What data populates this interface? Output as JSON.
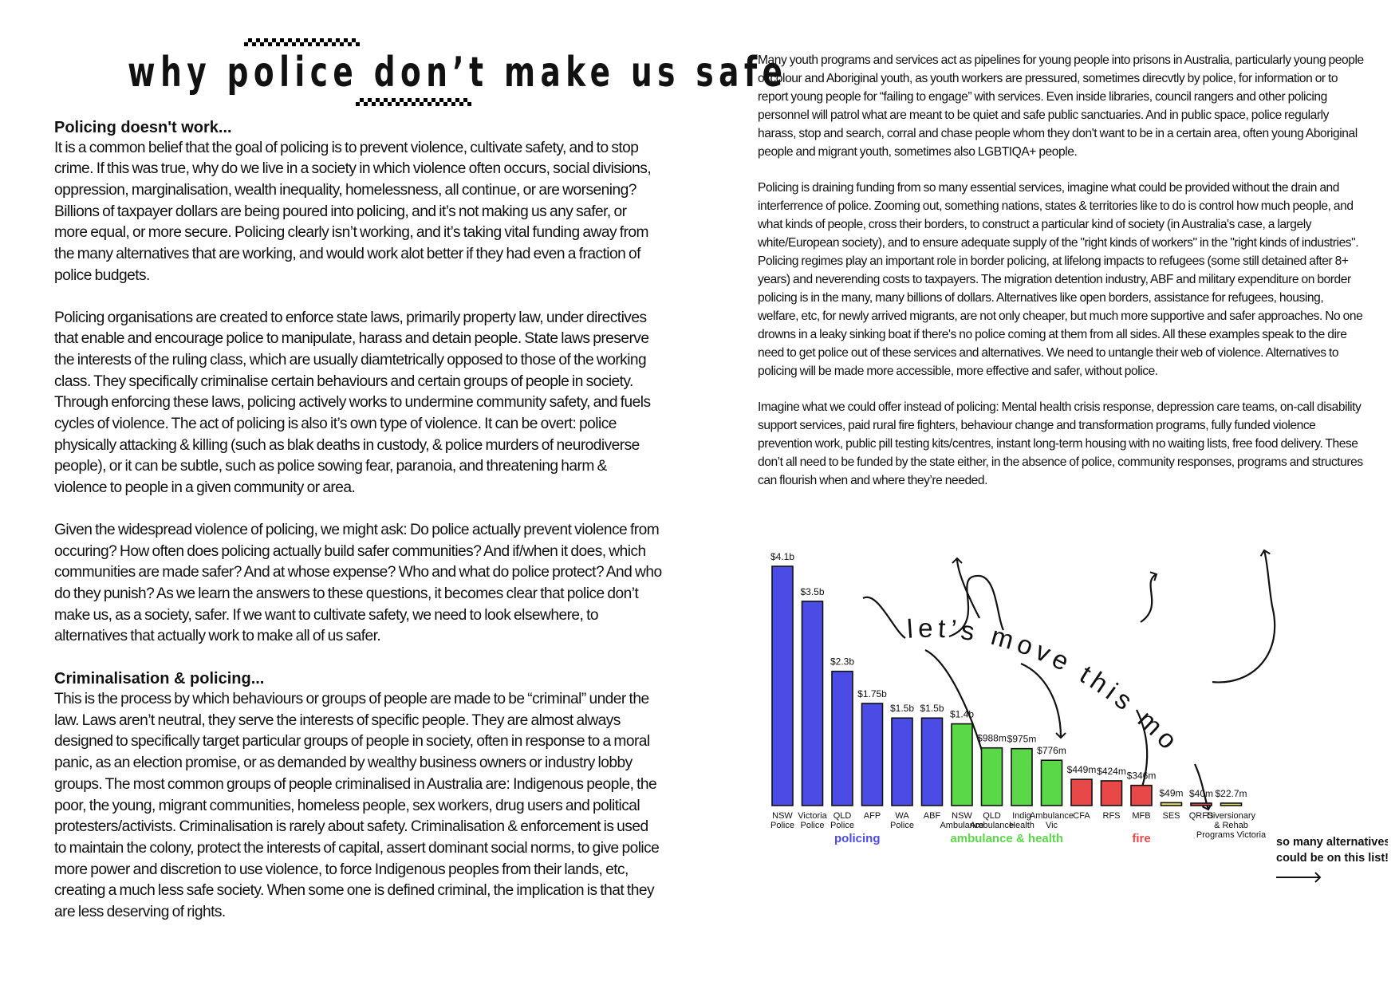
{
  "left": {
    "title": "why police don’t make us safe",
    "sections": [
      {
        "heading": "Policing doesn't work...",
        "paragraphs": [
          "It is a common belief that the goal of policing is to prevent violence, cultivate safety, and to stop crime. If this was true, why do we live in a society in which violence often occurs, social divisions, oppression, marginalisation, wealth inequality, homelessness, all continue, or are worsening? Billions of taxpayer dollars are being poured into policing, and it’s not making us any safer, or more equal, or more secure.  Policing clearly isn’t working, and it’s taking vital funding away from the many alternatives that are working, and would work alot better if they had even a fraction of police budgets."
        ]
      },
      {
        "heading": "",
        "paragraphs": [
          "Policing organisations are created to enforce state laws, primarily property law, under directives that enable and encourage police to manipulate, harass and detain people. State laws preserve the interests of the ruling class, which are usually diamtetrically opposed to those of the working class. They specifically criminalise certain behaviours and certain groups of people in society. Through enforcing these laws, policing actively works to undermine community safety, and fuels cycles of violence. The act of policing is also it’s own type of violence. It can be overt: police physically attacking & killing (such as blak deaths in custody, & police murders of neurodiverse people), or it can be subtle, such as police sowing fear, paranoia, and threatening harm & violence to people in a given community or area."
        ]
      },
      {
        "heading": "",
        "paragraphs": [
          "Given the widespread violence of policing, we might ask: Do police actually prevent violence from occuring? How often does policing actually build safer communities? And if/when it does, which communities are made safer? And at whose expense? Who and what do police protect? And who do they punish? As we learn the answers to these questions, it becomes clear that police don’t make us, as a society, safer. If we want to cultivate safety, we need to look elsewhere, to alternatives that actually work to make all of us safer."
        ]
      },
      {
        "heading": "Criminalisation & policing...",
        "paragraphs": [
          "This is the process by which behaviours or groups of people are made to be “criminal” under the law. Laws aren’t neutral, they serve the interests of specific people. They are almost always designed to specifically target particular groups of people in society, often in response to a moral panic, as an election promise, or as demanded by wealthy business owners or industry lobby groups. The most common groups of people criminalised in Australia are: Indigenous people, the poor, the young, migrant communities, homeless people, sex workers, drug users and political protesters/activists. Criminalisation is rarely about safety. Criminalisation & enforcement is used to maintain the colony, protect the interests of capital, assert dominant social norms, to give police more power and discretion to use violence, to force Indigenous peoples from their lands, etc, creating a much less safe society. When some one is defined criminal, the implication is that they are less deserving of rights."
        ]
      }
    ]
  },
  "right": {
    "paragraphs": [
      "Many youth programs and services act as pipelines for young people into prisons in Australia, particularly young people of colour and Aboriginal youth, as youth workers are pressured, sometimes direcvtly by police, for information or to report young people for “failing to engage” with services. Even inside libraries, council rangers and other policing personnel will patrol what are meant to be quiet and safe public sanctuaries. And in public space, police regularly harass, stop and search, corral and chase people whom they don't want to be in a certain area, often young Aboriginal people and migrant youth, sometimes also LGBTIQA+ people.",
      "Policing is draining funding from so many essential services, imagine what could be provided without the drain and interferrence of police. Zooming out, something nations, states & territories like to do is control how much people, and what kinds of people, cross their borders, to construct a particular kind of society (in Australia's case, a largely white/European society), and to ensure adequate supply of the \"right kinds of workers\" in the \"right kinds of industries\". Policing regimes play an important role in border policing, at lifelong impacts to refugees (some still detained after 8+ years) and neverending costs to taxpayers. The migration detention industry, ABF and military expenditure on border policing is in the many, many billions of dollars. Alternatives like open borders, assistance for refugees, housing, welfare, etc, for newly arrived migrants, are not only cheaper, but much more supportive and safer approaches. No one drowns in a leaky sinking boat if there's no police coming at them from all sides. All these examples speak to the dire need to get police out of these services and alternatives. We need to untangle their web of violence. Alternatives to policing will be made more accessible, more effective and safer, without police.",
      "Imagine what we could offer instead of policing: Mental health crisis response, depression care teams, on-call disability support services, paid rural fire fighters, behaviour change and transformation programs, fully funded violence prevention work, public pill testing kits/centres, instant long-term housing with no waiting lists, free food delivery. These don’t all need to be funded by the state either, in the absence of police, community responses, programs and structures can flourish when and where they’re needed."
    ]
  },
  "colors": {
    "policing": "#4b4be6",
    "ambulance": "#5ad848",
    "fire": "#e84848",
    "other": "#e8e85a"
  },
  "chart_data": {
    "type": "bar",
    "title": "",
    "annotation": "let’s move this money!",
    "side_note": "so many alternatives could be on this list!",
    "value_unit": "billion AUD",
    "bars": [
      {
        "label": "NSW Police",
        "value": 4.1,
        "value_label": "$4.1b",
        "group": "policing"
      },
      {
        "label": "Victoria Police",
        "value": 3.5,
        "value_label": "$3.5b",
        "group": "policing"
      },
      {
        "label": "QLD Police",
        "value": 2.3,
        "value_label": "$2.3b",
        "group": "policing"
      },
      {
        "label": "AFP",
        "value": 1.75,
        "value_label": "$1.75b",
        "group": "policing"
      },
      {
        "label": "WA Police",
        "value": 1.5,
        "value_label": "$1.5b",
        "group": "policing"
      },
      {
        "label": "ABF",
        "value": 1.5,
        "value_label": "$1.5b",
        "group": "policing"
      },
      {
        "label": "NSW Ambulance",
        "value": 1.4,
        "value_label": "$1.4b",
        "group": "ambulance"
      },
      {
        "label": "QLD Ambulance",
        "value": 0.988,
        "value_label": "$988m",
        "group": "ambulance"
      },
      {
        "label": "Indig Health",
        "value": 0.975,
        "value_label": "$975m",
        "group": "ambulance"
      },
      {
        "label": "Ambulance Vic",
        "value": 0.776,
        "value_label": "$776m",
        "group": "ambulance"
      },
      {
        "label": "CFA",
        "value": 0.449,
        "value_label": "$449m",
        "group": "fire"
      },
      {
        "label": "RFS",
        "value": 0.424,
        "value_label": "$424m",
        "group": "fire"
      },
      {
        "label": "MFB",
        "value": 0.346,
        "value_label": "$346m",
        "group": "fire"
      },
      {
        "label": "SES",
        "value": 0.049,
        "value_label": "$49m",
        "group": "other"
      },
      {
        "label": "QRFS",
        "value": 0.04,
        "value_label": "$40m",
        "group": "fire"
      },
      {
        "label": "Diversionary & Rehab Programs Victoria",
        "value": 0.0227,
        "value_label": "$22.7m",
        "group": "other"
      }
    ],
    "groups": [
      {
        "key": "policing",
        "label": "policing"
      },
      {
        "key": "ambulance",
        "label": "ambulance & health"
      },
      {
        "key": "fire",
        "label": "fire"
      }
    ]
  }
}
